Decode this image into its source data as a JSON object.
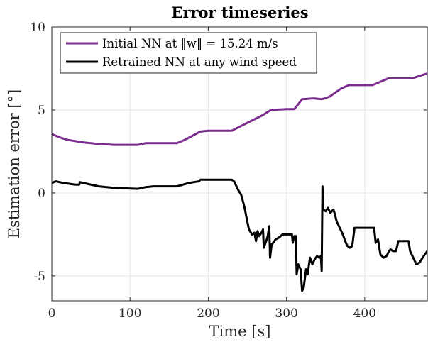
{
  "chart_data": {
    "type": "line",
    "title": "Error timeseries",
    "xlabel": "Time [s]",
    "ylabel": "Estimation error [°]",
    "xlim": [
      0,
      480
    ],
    "ylim": [
      -6.5,
      10
    ],
    "grid": true,
    "legend_position": "top-left",
    "x_ticks": [
      0,
      100,
      200,
      300,
      400
    ],
    "y_ticks": [
      10,
      5,
      0,
      -5
    ],
    "x_tick_labels": [
      "0",
      "100",
      "200",
      "300",
      "400"
    ],
    "y_tick_labels": [
      "10",
      "5",
      "0",
      "-5"
    ],
    "series": [
      {
        "name": "Initial NN at ‖w‖ = 15.24 m/s",
        "color": "#7b2d8e",
        "points": [
          [
            0,
            3.55
          ],
          [
            10,
            3.35
          ],
          [
            20,
            3.2
          ],
          [
            40,
            3.05
          ],
          [
            60,
            2.95
          ],
          [
            80,
            2.9
          ],
          [
            110,
            2.9
          ],
          [
            120,
            3.0
          ],
          [
            160,
            3.0
          ],
          [
            170,
            3.2
          ],
          [
            190,
            3.7
          ],
          [
            200,
            3.75
          ],
          [
            230,
            3.75
          ],
          [
            270,
            4.7
          ],
          [
            280,
            5.0
          ],
          [
            300,
            5.05
          ],
          [
            310,
            5.05
          ],
          [
            320,
            5.65
          ],
          [
            335,
            5.7
          ],
          [
            345,
            5.65
          ],
          [
            355,
            5.8
          ],
          [
            370,
            6.3
          ],
          [
            380,
            6.5
          ],
          [
            410,
            6.5
          ],
          [
            420,
            6.7
          ],
          [
            430,
            6.9
          ],
          [
            460,
            6.9
          ],
          [
            480,
            7.2
          ]
        ]
      },
      {
        "name": "Retrained NN at any wind speed",
        "color": "#000000",
        "points": [
          [
            0,
            0.6
          ],
          [
            5,
            0.7
          ],
          [
            15,
            0.6
          ],
          [
            30,
            0.5
          ],
          [
            35,
            0.5
          ],
          [
            36,
            0.65
          ],
          [
            50,
            0.5
          ],
          [
            60,
            0.4
          ],
          [
            80,
            0.3
          ],
          [
            110,
            0.25
          ],
          [
            115,
            0.3
          ],
          [
            120,
            0.35
          ],
          [
            130,
            0.4
          ],
          [
            160,
            0.4
          ],
          [
            175,
            0.6
          ],
          [
            188,
            0.7
          ],
          [
            190,
            0.8
          ],
          [
            200,
            0.8
          ],
          [
            230,
            0.8
          ],
          [
            233,
            0.7
          ],
          [
            238,
            0.2
          ],
          [
            242,
            -0.1
          ],
          [
            246,
            -0.8
          ],
          [
            249,
            -1.5
          ],
          [
            252,
            -2.2
          ],
          [
            256,
            -2.5
          ],
          [
            259,
            -2.4
          ],
          [
            261,
            -2.9
          ],
          [
            263,
            -2.3
          ],
          [
            265,
            -2.6
          ],
          [
            268,
            -2.4
          ],
          [
            270,
            -2.2
          ],
          [
            271,
            -3.3
          ],
          [
            274,
            -2.9
          ],
          [
            276,
            -2.6
          ],
          [
            278,
            -2.0
          ],
          [
            279,
            -3.9
          ],
          [
            281,
            -3.1
          ],
          [
            283,
            -3.0
          ],
          [
            286,
            -2.8
          ],
          [
            290,
            -2.7
          ],
          [
            295,
            -2.5
          ],
          [
            307,
            -2.5
          ],
          [
            308,
            -3.0
          ],
          [
            310,
            -2.6
          ],
          [
            312,
            -2.6
          ],
          [
            313,
            -4.9
          ],
          [
            315,
            -4.3
          ],
          [
            318,
            -4.6
          ],
          [
            320,
            -5.9
          ],
          [
            322,
            -5.7
          ],
          [
            325,
            -4.6
          ],
          [
            327,
            -4.9
          ],
          [
            330,
            -3.9
          ],
          [
            333,
            -4.3
          ],
          [
            336,
            -4.0
          ],
          [
            339,
            -3.8
          ],
          [
            342,
            -3.9
          ],
          [
            344,
            -3.8
          ],
          [
            345,
            -4.7
          ],
          [
            346,
            0.4
          ],
          [
            347,
            -1.0
          ],
          [
            350,
            -1.1
          ],
          [
            353,
            -0.9
          ],
          [
            356,
            -1.2
          ],
          [
            358,
            -1.1
          ],
          [
            360,
            -1.0
          ],
          [
            362,
            -1.3
          ],
          [
            364,
            -1.7
          ],
          [
            368,
            -2.1
          ],
          [
            372,
            -2.5
          ],
          [
            375,
            -2.9
          ],
          [
            378,
            -3.2
          ],
          [
            381,
            -3.3
          ],
          [
            384,
            -3.2
          ],
          [
            387,
            -2.1
          ],
          [
            395,
            -2.1
          ],
          [
            405,
            -2.1
          ],
          [
            412,
            -2.1
          ],
          [
            414,
            -3.0
          ],
          [
            417,
            -2.8
          ],
          [
            420,
            -3.7
          ],
          [
            424,
            -3.9
          ],
          [
            428,
            -3.8
          ],
          [
            431,
            -3.5
          ],
          [
            433,
            -3.4
          ],
          [
            436,
            -3.5
          ],
          [
            440,
            -3.5
          ],
          [
            443,
            -2.9
          ],
          [
            450,
            -2.9
          ],
          [
            456,
            -2.9
          ],
          [
            458,
            -3.5
          ],
          [
            460,
            -3.7
          ],
          [
            463,
            -4.0
          ],
          [
            466,
            -4.3
          ],
          [
            470,
            -4.2
          ],
          [
            474,
            -3.9
          ],
          [
            480,
            -3.5
          ]
        ]
      }
    ]
  }
}
